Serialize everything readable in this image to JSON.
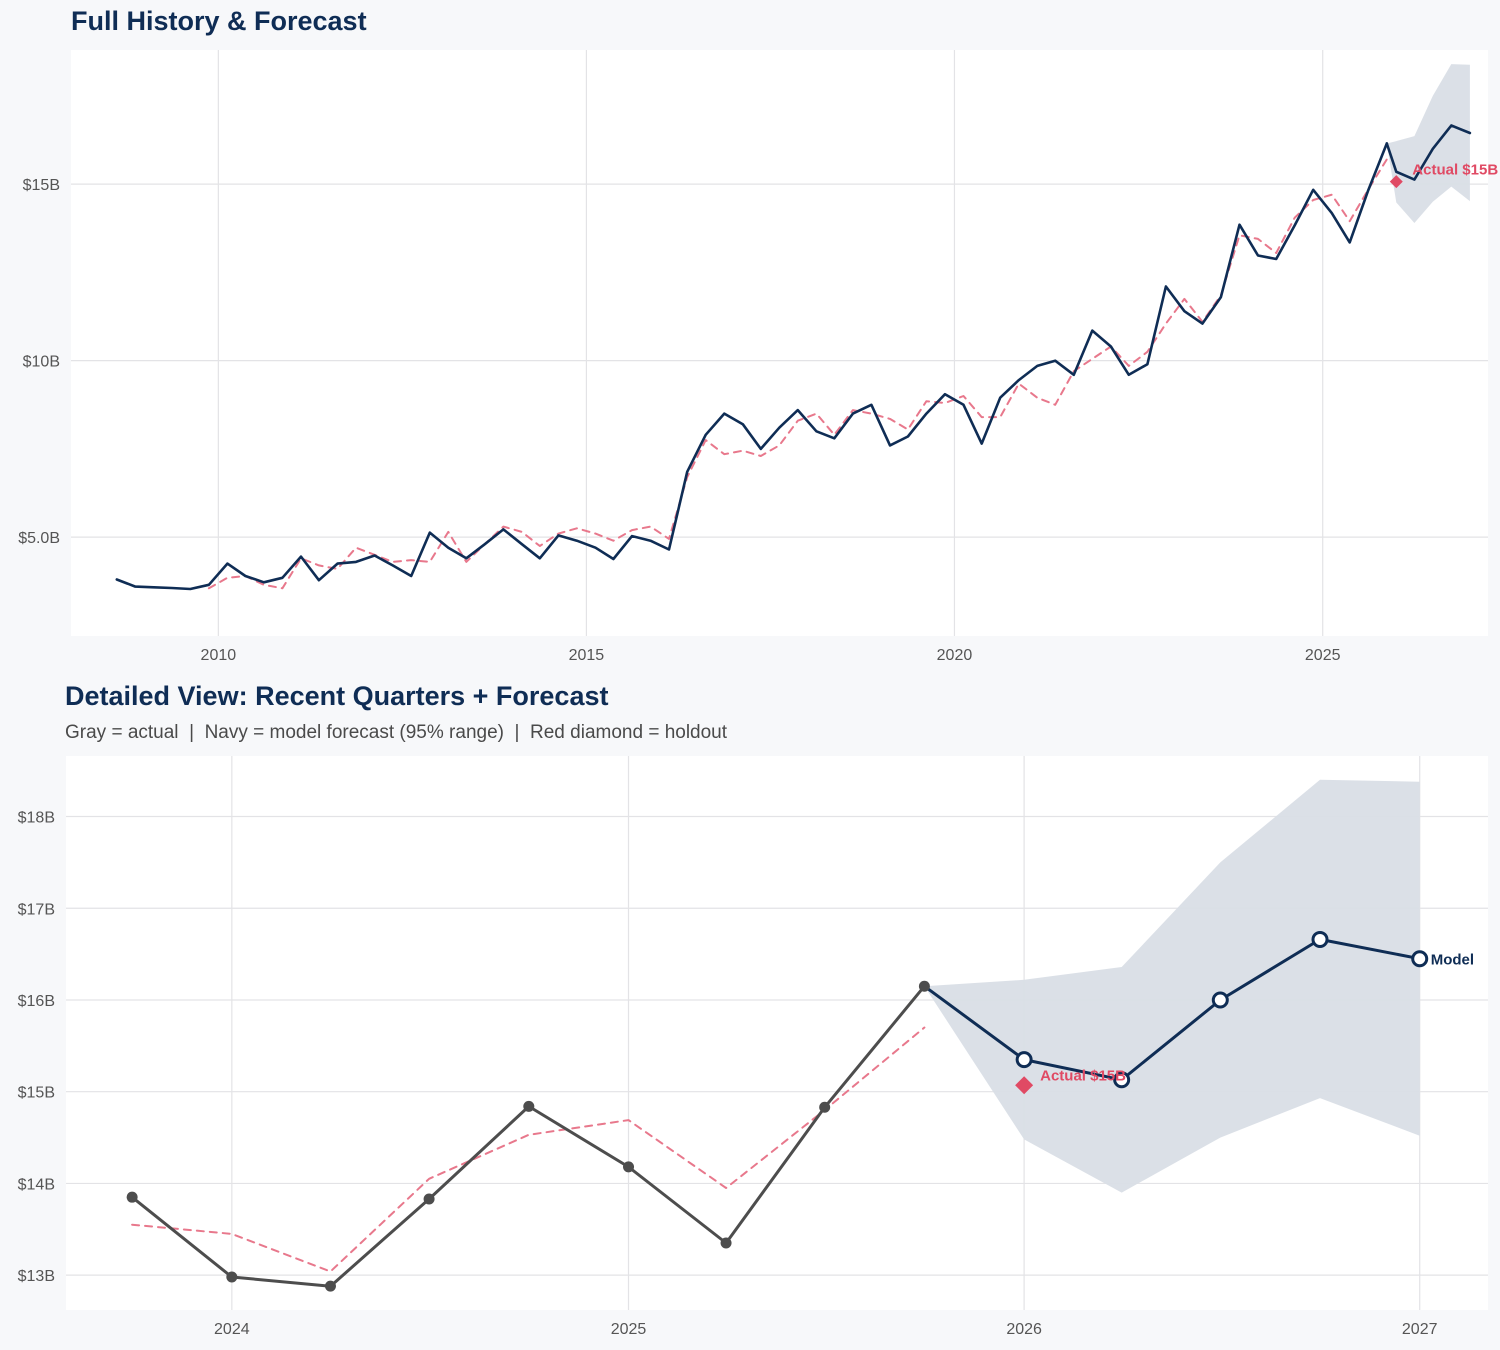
{
  "chart_data": [
    {
      "type": "line",
      "title": "Full History & Forecast",
      "x_axis": {
        "type": "date",
        "ticks": [
          "2010",
          "2015",
          "2020",
          "2025"
        ],
        "xlim": [
          "2008-01-01",
          "2027-04-01"
        ]
      },
      "y_axis": {
        "ticks": [
          {
            "value": 5,
            "label": "$5.0B"
          },
          {
            "value": 10,
            "label": "$10B"
          },
          {
            "value": 15,
            "label": "$15B"
          }
        ],
        "ylim": [
          2.2,
          18.8
        ],
        "unit": "$B"
      },
      "grid": true,
      "series": [
        {
          "role": "actual",
          "color": "#0f2d55",
          "style": "solid",
          "points": [
            [
              "2008-08-15",
              3.8
            ],
            [
              "2008-11-15",
              3.6
            ],
            [
              "2009-02-15",
              3.58
            ],
            [
              "2009-05-15",
              3.56
            ],
            [
              "2009-08-15",
              3.53
            ],
            [
              "2009-11-15",
              3.65
            ],
            [
              "2010-02-15",
              4.25
            ],
            [
              "2010-05-15",
              3.9
            ],
            [
              "2010-08-15",
              3.72
            ],
            [
              "2010-11-15",
              3.85
            ],
            [
              "2011-02-15",
              4.45
            ],
            [
              "2011-05-15",
              3.78
            ],
            [
              "2011-08-15",
              4.25
            ],
            [
              "2011-11-15",
              4.3
            ],
            [
              "2012-02-15",
              4.48
            ],
            [
              "2012-05-15",
              4.2
            ],
            [
              "2012-08-15",
              3.9
            ],
            [
              "2012-11-15",
              5.13
            ],
            [
              "2013-02-15",
              4.7
            ],
            [
              "2013-05-15",
              4.4
            ],
            [
              "2013-08-15",
              4.8
            ],
            [
              "2013-11-15",
              5.22
            ],
            [
              "2014-02-15",
              4.8
            ],
            [
              "2014-05-15",
              4.4
            ],
            [
              "2014-08-15",
              5.05
            ],
            [
              "2014-11-15",
              4.9
            ],
            [
              "2015-02-15",
              4.7
            ],
            [
              "2015-05-15",
              4.38
            ],
            [
              "2015-08-15",
              5.03
            ],
            [
              "2015-11-15",
              4.9
            ],
            [
              "2016-02-15",
              4.65
            ],
            [
              "2016-05-15",
              6.85
            ],
            [
              "2016-08-15",
              7.9
            ],
            [
              "2016-11-15",
              8.5
            ],
            [
              "2017-02-15",
              8.2
            ],
            [
              "2017-05-15",
              7.5
            ],
            [
              "2017-08-15",
              8.1
            ],
            [
              "2017-11-15",
              8.6
            ],
            [
              "2018-02-15",
              8.0
            ],
            [
              "2018-05-15",
              7.8
            ],
            [
              "2018-08-15",
              8.5
            ],
            [
              "2018-11-15",
              8.75
            ],
            [
              "2019-02-15",
              7.6
            ],
            [
              "2019-05-15",
              7.85
            ],
            [
              "2019-08-15",
              8.5
            ],
            [
              "2019-11-15",
              9.05
            ],
            [
              "2020-02-15",
              8.75
            ],
            [
              "2020-05-15",
              7.65
            ],
            [
              "2020-08-15",
              8.95
            ],
            [
              "2020-11-15",
              9.45
            ],
            [
              "2021-02-15",
              9.85
            ],
            [
              "2021-05-15",
              10.0
            ],
            [
              "2021-08-15",
              9.6
            ],
            [
              "2021-11-15",
              10.85
            ],
            [
              "2022-02-15",
              10.4
            ],
            [
              "2022-05-15",
              9.6
            ],
            [
              "2022-08-15",
              9.9
            ],
            [
              "2022-11-15",
              12.1
            ],
            [
              "2023-02-15",
              11.4
            ],
            [
              "2023-05-15",
              11.05
            ],
            [
              "2023-08-15",
              11.8
            ],
            [
              "2023-11-15",
              13.85
            ],
            [
              "2024-02-15",
              12.98
            ],
            [
              "2024-05-15",
              12.88
            ],
            [
              "2024-08-15",
              13.83
            ],
            [
              "2024-11-15",
              14.84
            ],
            [
              "2025-02-15",
              14.18
            ],
            [
              "2025-05-15",
              13.35
            ],
            [
              "2025-08-15",
              14.83
            ],
            [
              "2025-11-15",
              16.15
            ]
          ]
        },
        {
          "role": "fitted",
          "color": "#e8788c",
          "style": "dashed",
          "points": [
            [
              "2009-11-15",
              3.55
            ],
            [
              "2010-02-15",
              3.85
            ],
            [
              "2010-05-15",
              3.9
            ],
            [
              "2010-08-15",
              3.65
            ],
            [
              "2010-11-15",
              3.55
            ],
            [
              "2011-02-15",
              4.4
            ],
            [
              "2011-05-15",
              4.2
            ],
            [
              "2011-08-15",
              4.1
            ],
            [
              "2011-11-15",
              4.7
            ],
            [
              "2012-02-15",
              4.5
            ],
            [
              "2012-05-15",
              4.3
            ],
            [
              "2012-08-15",
              4.35
            ],
            [
              "2012-11-15",
              4.3
            ],
            [
              "2013-02-15",
              5.15
            ],
            [
              "2013-05-15",
              4.3
            ],
            [
              "2013-08-15",
              4.8
            ],
            [
              "2013-11-15",
              5.3
            ],
            [
              "2014-02-15",
              5.15
            ],
            [
              "2014-05-15",
              4.75
            ],
            [
              "2014-08-15",
              5.1
            ],
            [
              "2014-11-15",
              5.25
            ],
            [
              "2015-02-15",
              5.1
            ],
            [
              "2015-05-15",
              4.9
            ],
            [
              "2015-08-15",
              5.2
            ],
            [
              "2015-11-15",
              5.3
            ],
            [
              "2016-02-15",
              4.95
            ],
            [
              "2016-05-15",
              6.7
            ],
            [
              "2016-08-15",
              7.75
            ],
            [
              "2016-11-15",
              7.35
            ],
            [
              "2017-02-15",
              7.45
            ],
            [
              "2017-05-15",
              7.3
            ],
            [
              "2017-08-15",
              7.6
            ],
            [
              "2017-11-15",
              8.3
            ],
            [
              "2018-02-15",
              8.5
            ],
            [
              "2018-05-15",
              7.9
            ],
            [
              "2018-08-15",
              8.6
            ],
            [
              "2018-11-15",
              8.5
            ],
            [
              "2019-02-15",
              8.35
            ],
            [
              "2019-05-15",
              8.05
            ],
            [
              "2019-08-15",
              8.85
            ],
            [
              "2019-11-15",
              8.8
            ],
            [
              "2020-02-15",
              9.0
            ],
            [
              "2020-05-15",
              8.4
            ],
            [
              "2020-08-15",
              8.4
            ],
            [
              "2020-11-15",
              9.35
            ],
            [
              "2021-02-15",
              8.95
            ],
            [
              "2021-05-15",
              8.75
            ],
            [
              "2021-08-15",
              9.7
            ],
            [
              "2021-11-15",
              10.05
            ],
            [
              "2022-02-15",
              10.4
            ],
            [
              "2022-05-15",
              9.85
            ],
            [
              "2022-08-15",
              10.25
            ],
            [
              "2022-11-15",
              11.05
            ],
            [
              "2023-02-15",
              11.75
            ],
            [
              "2023-05-15",
              11.1
            ],
            [
              "2023-08-15",
              11.85
            ],
            [
              "2023-11-15",
              13.55
            ],
            [
              "2024-02-15",
              13.45
            ],
            [
              "2024-05-15",
              13.05
            ],
            [
              "2024-08-15",
              14.05
            ],
            [
              "2024-11-15",
              14.55
            ],
            [
              "2025-02-15",
              14.7
            ],
            [
              "2025-05-15",
              13.95
            ],
            [
              "2025-08-15",
              14.85
            ],
            [
              "2025-11-15",
              15.7
            ]
          ]
        },
        {
          "role": "forecast",
          "color": "#0f2d55",
          "style": "solid",
          "points": [
            [
              "2025-11-15",
              16.15
            ],
            [
              "2026-01-01",
              15.35
            ],
            [
              "2026-04-01",
              15.13
            ],
            [
              "2026-07-01",
              16.0
            ],
            [
              "2026-10-01",
              16.66
            ],
            [
              "2027-01-01",
              16.45
            ]
          ]
        }
      ],
      "forecast_band": {
        "color": "#d9dee6",
        "points": [
          [
            "2025-11-15",
            16.15,
            16.15
          ],
          [
            "2026-01-01",
            14.48,
            16.22
          ],
          [
            "2026-04-01",
            13.9,
            16.36
          ],
          [
            "2026-07-01",
            14.5,
            17.5
          ],
          [
            "2026-10-01",
            14.93,
            18.4
          ],
          [
            "2027-01-01",
            14.52,
            18.38
          ]
        ]
      },
      "holdout": {
        "date": "2026-01-01",
        "value": 15.07,
        "color": "#e04a64",
        "label": "Actual $15B"
      }
    },
    {
      "type": "line",
      "title": "Detailed View: Recent Quarters + Forecast",
      "subtitle": "Gray = actual  |  Navy = model forecast (95% range)  |  Red diamond = holdout",
      "x_axis": {
        "type": "date",
        "ticks": [
          "2024",
          "2025",
          "2026",
          "2027"
        ],
        "xlim": [
          "2023-08-01",
          "2027-03-05"
        ]
      },
      "y_axis": {
        "ticks": [
          {
            "value": 13,
            "label": "$13B"
          },
          {
            "value": 14,
            "label": "$14B"
          },
          {
            "value": 15,
            "label": "$15B"
          },
          {
            "value": 16,
            "label": "$16B"
          },
          {
            "value": 17,
            "label": "$17B"
          },
          {
            "value": 18,
            "label": "$18B"
          }
        ],
        "ylim": [
          12.62,
          18.66
        ],
        "unit": "$B"
      },
      "grid": true,
      "series": [
        {
          "role": "actual",
          "color": "#4d4d4d",
          "style": "solid-with-points",
          "points": [
            [
              "2023-10-01",
              13.85
            ],
            [
              "2024-01-01",
              12.98
            ],
            [
              "2024-04-01",
              12.88
            ],
            [
              "2024-07-01",
              13.83
            ],
            [
              "2024-10-01",
              14.84
            ],
            [
              "2025-01-01",
              14.18
            ],
            [
              "2025-04-01",
              13.35
            ],
            [
              "2025-07-01",
              14.83
            ],
            [
              "2025-10-01",
              16.15
            ]
          ]
        },
        {
          "role": "fitted",
          "color": "#e8788c",
          "style": "dashed",
          "points": [
            [
              "2023-10-01",
              13.55
            ],
            [
              "2024-01-01",
              13.45
            ],
            [
              "2024-04-01",
              13.04
            ],
            [
              "2024-07-01",
              14.05
            ],
            [
              "2024-10-01",
              14.53
            ],
            [
              "2025-01-01",
              14.69
            ],
            [
              "2025-04-01",
              13.95
            ],
            [
              "2025-07-01",
              14.8
            ],
            [
              "2025-10-01",
              15.7
            ]
          ]
        },
        {
          "role": "forecast",
          "name": "Model",
          "color": "#0f2d55",
          "style": "solid-with-open-points",
          "points": [
            [
              "2025-10-01",
              16.15
            ],
            [
              "2026-01-01",
              15.35
            ],
            [
              "2026-04-01",
              15.13
            ],
            [
              "2026-07-01",
              16.0
            ],
            [
              "2026-10-01",
              16.66
            ],
            [
              "2027-01-01",
              16.45
            ]
          ]
        }
      ],
      "forecast_band": {
        "color": "#d9dee6",
        "points": [
          [
            "2025-10-01",
            16.15,
            16.15
          ],
          [
            "2026-01-01",
            14.48,
            16.22
          ],
          [
            "2026-04-01",
            13.9,
            16.36
          ],
          [
            "2026-07-01",
            14.5,
            17.5
          ],
          [
            "2026-10-01",
            14.93,
            18.4
          ],
          [
            "2027-01-01",
            14.52,
            18.38
          ]
        ]
      },
      "holdout": {
        "date": "2026-01-01",
        "value": 15.07,
        "color": "#e04a64",
        "label": "Actual $15B"
      },
      "end_label": "Model"
    }
  ]
}
